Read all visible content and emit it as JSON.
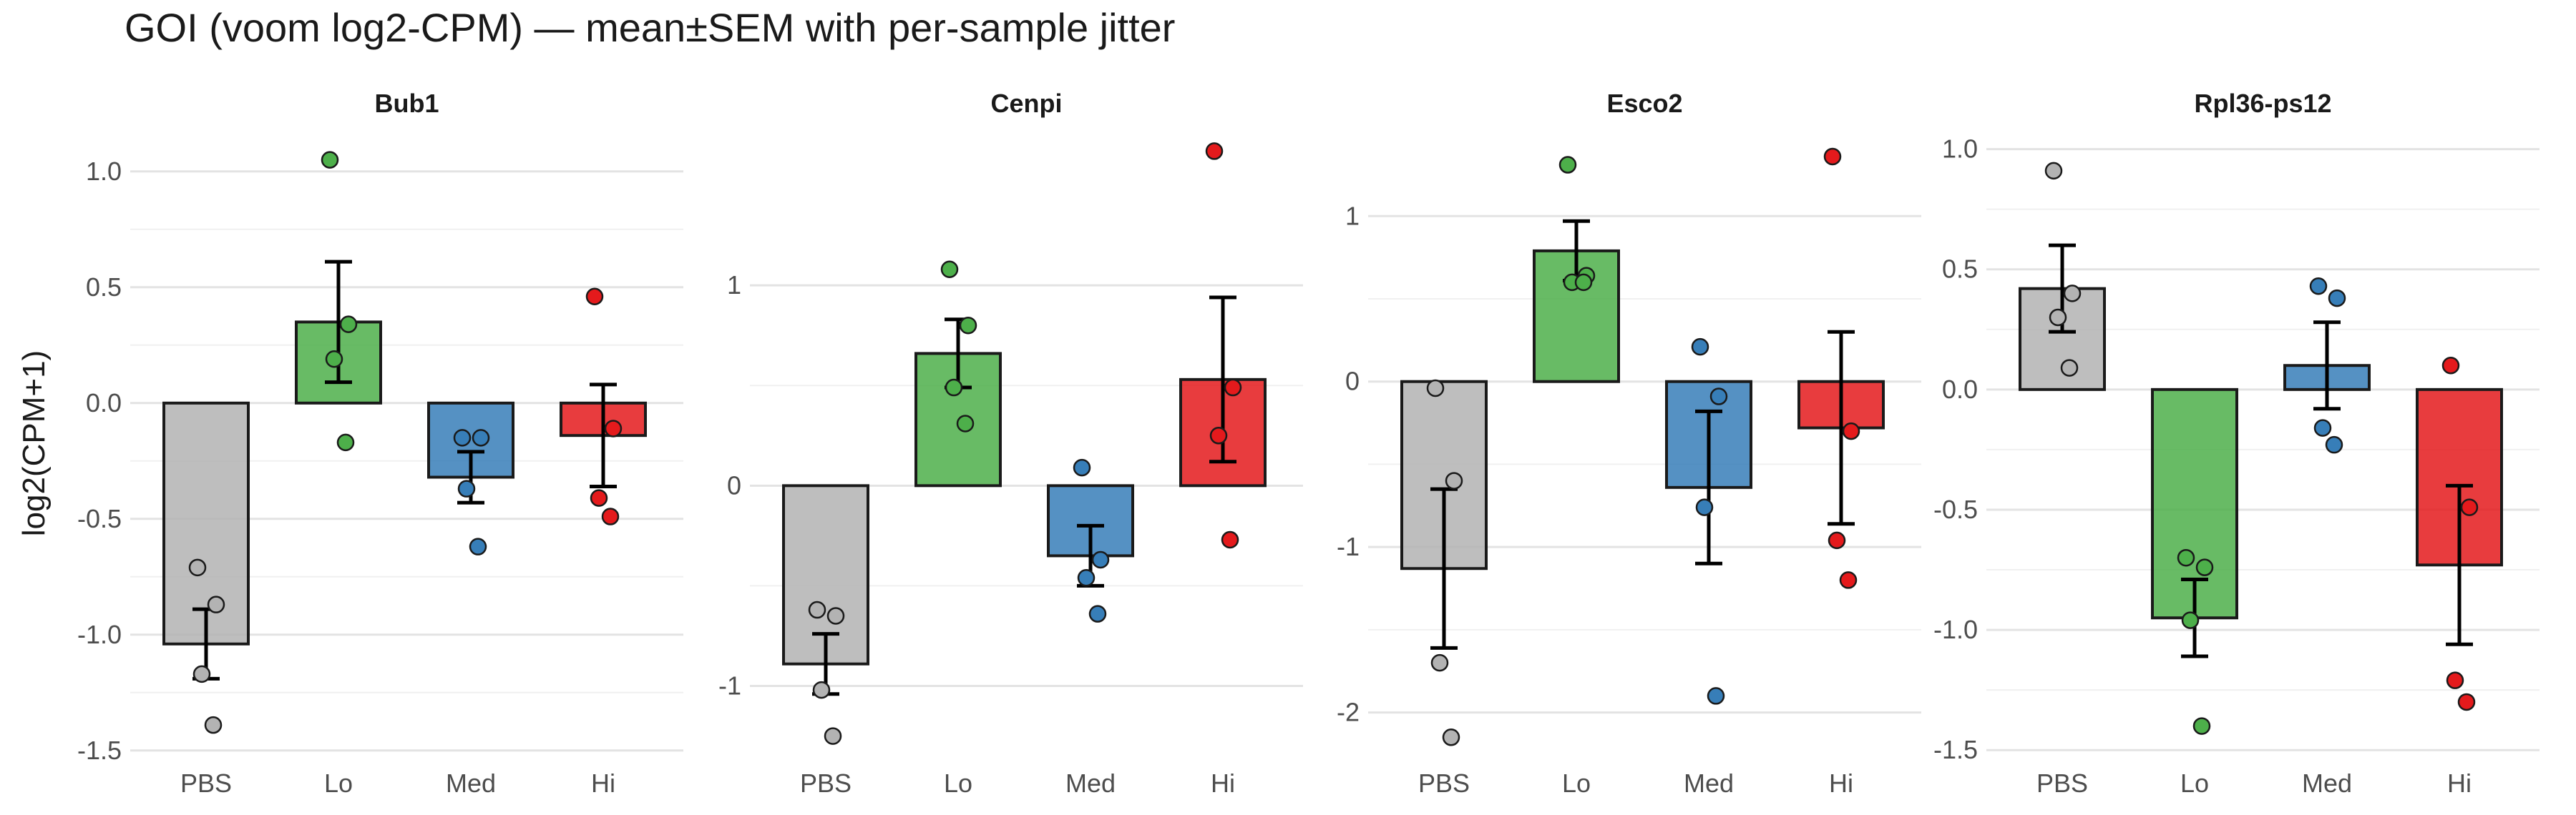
{
  "chart_data": {
    "type": "bar",
    "title": "GOI (voom log2-CPM) — mean±SEM with per-sample jitter",
    "ylabel": "log2(CPM+1)",
    "xlabel": "",
    "grid": true,
    "legend": "none",
    "categories": [
      "PBS",
      "Lo",
      "Med",
      "Hi"
    ],
    "colors": {
      "PBS": "#b3b3b3",
      "Lo": "#4daf4a",
      "Med": "#377eb8",
      "Hi": "#e41a1c"
    },
    "panels": [
      {
        "gene": "Bub1",
        "ylim": [
          -1.55,
          1.2
        ],
        "yticks": [
          {
            "value": 1.0,
            "label": "1.0"
          },
          {
            "value": 0.5,
            "label": "0.5"
          },
          {
            "value": 0.0,
            "label": "0.0"
          },
          {
            "value": -0.5,
            "label": "-0.5"
          },
          {
            "value": -1.0,
            "label": "-1.0"
          },
          {
            "value": -1.5,
            "label": "-1.5"
          }
        ],
        "means": [
          -1.04,
          0.35,
          -0.32,
          -0.14
        ],
        "sem": [
          0.15,
          0.26,
          0.11,
          0.22
        ],
        "points": [
          [
            -0.71,
            -0.87,
            -1.17,
            -1.39
          ],
          [
            1.05,
            0.34,
            0.19,
            -0.17
          ],
          [
            -0.15,
            -0.15,
            -0.37,
            -0.62
          ],
          [
            0.46,
            -0.11,
            -0.41,
            -0.49
          ]
        ]
      },
      {
        "gene": "Cenpi",
        "ylim": [
          -1.38,
          1.8
        ],
        "yticks": [
          {
            "value": 1.0,
            "label": "1"
          },
          {
            "value": 0.0,
            "label": "0"
          },
          {
            "value": -1.0,
            "label": "-1"
          }
        ],
        "means": [
          -0.89,
          0.66,
          -0.35,
          0.53
        ],
        "sem": [
          0.15,
          0.17,
          0.15,
          0.41
        ],
        "points": [
          [
            -0.62,
            -0.65,
            -1.02,
            -1.25
          ],
          [
            1.08,
            0.8,
            0.49,
            0.31
          ],
          [
            0.09,
            -0.37,
            -0.46,
            -0.64
          ],
          [
            1.67,
            0.49,
            0.25,
            -0.27
          ]
        ]
      },
      {
        "gene": "Esco2",
        "ylim": [
          -2.3,
          1.55
        ],
        "yticks": [
          {
            "value": 1.0,
            "label": "1"
          },
          {
            "value": 0.0,
            "label": "0"
          },
          {
            "value": -1.0,
            "label": "-1"
          },
          {
            "value": -2.0,
            "label": "-2"
          }
        ],
        "means": [
          -1.13,
          0.79,
          -0.64,
          -0.28
        ],
        "sem": [
          0.48,
          0.18,
          0.46,
          0.58
        ],
        "points": [
          [
            -0.04,
            -0.6,
            -1.7,
            -2.15
          ],
          [
            1.31,
            0.64,
            0.6,
            0.6
          ],
          [
            0.21,
            -0.09,
            -0.76,
            -1.9
          ],
          [
            1.36,
            -0.3,
            -0.96,
            -1.2
          ]
        ]
      },
      {
        "gene": "Rpl36-ps12",
        "ylim": [
          -1.55,
          1.1
        ],
        "yticks": [
          {
            "value": 1.0,
            "label": "1.0"
          },
          {
            "value": 0.5,
            "label": "0.5"
          },
          {
            "value": 0.0,
            "label": "0.0"
          },
          {
            "value": -0.5,
            "label": "-0.5"
          },
          {
            "value": -1.0,
            "label": "-1.0"
          },
          {
            "value": -1.5,
            "label": "-1.5"
          }
        ],
        "means": [
          0.42,
          -0.95,
          0.1,
          -0.73
        ],
        "sem": [
          0.18,
          0.16,
          0.18,
          0.33
        ],
        "points": [
          [
            0.91,
            0.4,
            0.3,
            0.09
          ],
          [
            -0.7,
            -0.74,
            -0.96,
            -1.4
          ],
          [
            0.43,
            0.38,
            -0.16,
            -0.23
          ],
          [
            0.1,
            -0.49,
            -1.21,
            -1.3
          ]
        ]
      }
    ]
  }
}
